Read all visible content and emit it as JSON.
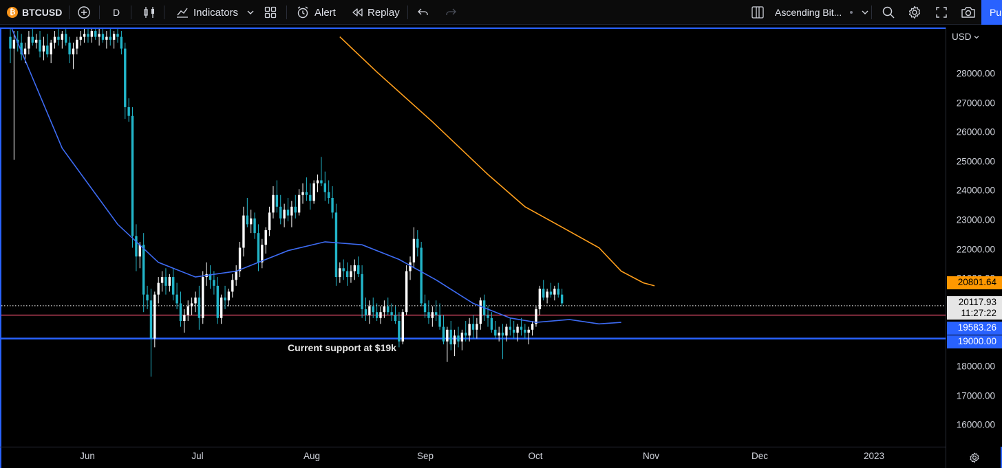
{
  "toolbar": {
    "symbol": "BTCUSD",
    "interval": "D",
    "indicators_label": "Indicators",
    "alert_label": "Alert",
    "replay_label": "Replay",
    "layout_name": "Ascending Bit...",
    "publish_label": "Pu"
  },
  "chart": {
    "currency": "USD",
    "annotation": "Current support at $19k",
    "price_ticks": [
      "28000.00",
      "27000.00",
      "26000.00",
      "25000.00",
      "24000.00",
      "23000.00",
      "22000.00",
      "21000.00",
      "18000.00",
      "17000.00",
      "16000.00"
    ],
    "price_min": 15000,
    "price_max": 29300,
    "month_labels": [
      "Jun",
      "Jul",
      "Aug",
      "Sep",
      "Oct",
      "Nov",
      "Dec",
      "2023"
    ],
    "labels": {
      "ma_orange": {
        "value": "20801.64",
        "color": "#ff9800"
      },
      "last_price": {
        "value": "20117.93",
        "countdown": "11:27:22"
      },
      "ma_blue": {
        "value": "19583.26",
        "color": "#2962ff"
      },
      "support": {
        "value": "19000.00",
        "color": "#2962ff"
      }
    },
    "colors": {
      "up": "#ffffff",
      "down": "#22b5c9",
      "ma_fast": "#3d6bf2",
      "ma_slow": "#ff9f1c",
      "support": "#2962ff",
      "resistance": "#f0506e"
    }
  },
  "chart_data": {
    "type": "line",
    "title": "",
    "levels": {
      "support": 19000,
      "resistance": 19800,
      "last": 20117.93
    },
    "ma_fast_points": [
      [
        1,
        29700
      ],
      [
        15,
        25500
      ],
      [
        30,
        22900
      ],
      [
        41,
        21600
      ],
      [
        51,
        21100
      ],
      [
        62,
        21300
      ],
      [
        76,
        22000
      ],
      [
        86,
        22300
      ],
      [
        96,
        22200
      ],
      [
        106,
        21700
      ],
      [
        116,
        21000
      ],
      [
        126,
        20200
      ],
      [
        136,
        19700
      ],
      [
        143,
        19550
      ],
      [
        152,
        19650
      ],
      [
        160,
        19500
      ],
      [
        166,
        19550
      ]
    ],
    "ma_slow_points": [
      [
        90,
        29300
      ],
      [
        100,
        28100
      ],
      [
        115,
        26400
      ],
      [
        130,
        24600
      ],
      [
        140,
        23500
      ],
      [
        150,
        22800
      ],
      [
        160,
        22100
      ],
      [
        166,
        21300
      ],
      [
        172,
        20900
      ],
      [
        175,
        20800
      ]
    ],
    "candles": [
      [
        1,
        29300,
        29600,
        28400,
        28900
      ],
      [
        2,
        28900,
        29500,
        25100,
        29200
      ],
      [
        3,
        29200,
        29500,
        28800,
        29100
      ],
      [
        4,
        29100,
        29400,
        28500,
        28700
      ],
      [
        5,
        28700,
        29100,
        28400,
        28900
      ],
      [
        6,
        28900,
        29500,
        28700,
        29300
      ],
      [
        7,
        29300,
        29700,
        29000,
        29100
      ],
      [
        8,
        29100,
        29400,
        28900,
        29200
      ],
      [
        9,
        29200,
        29500,
        28600,
        28800
      ],
      [
        10,
        28800,
        29300,
        28500,
        29000
      ],
      [
        11,
        29000,
        29400,
        28600,
        28700
      ],
      [
        12,
        28700,
        29200,
        28400,
        29100
      ],
      [
        13,
        29100,
        29500,
        28900,
        29300
      ],
      [
        14,
        29300,
        29600,
        29000,
        29200
      ],
      [
        15,
        29200,
        29500,
        28900,
        29400
      ],
      [
        16,
        29400,
        29700,
        29000,
        29100
      ],
      [
        17,
        29100,
        29300,
        28400,
        28700
      ],
      [
        18,
        28700,
        29100,
        28200,
        28900
      ],
      [
        19,
        28900,
        29300,
        28700,
        29200
      ],
      [
        20,
        29200,
        29500,
        29000,
        29300
      ],
      [
        21,
        29300,
        29600,
        29100,
        29400
      ],
      [
        22,
        29400,
        29700,
        29100,
        29300
      ],
      [
        23,
        29300,
        29600,
        29100,
        29500
      ],
      [
        24,
        29500,
        29800,
        29200,
        29300
      ],
      [
        25,
        29300,
        29600,
        29000,
        29400
      ],
      [
        26,
        29400,
        29700,
        29100,
        29200
      ],
      [
        27,
        29200,
        29500,
        28900,
        29300
      ],
      [
        28,
        29300,
        29600,
        29000,
        29200
      ],
      [
        29,
        29200,
        29500,
        28900,
        29400
      ],
      [
        30,
        29400,
        29700,
        29100,
        29300
      ],
      [
        31,
        29300,
        29500,
        28700,
        28900
      ],
      [
        32,
        28900,
        29100,
        26500,
        26900
      ],
      [
        33,
        26900,
        27200,
        26400,
        26600
      ],
      [
        34,
        26600,
        26900,
        22100,
        22500
      ],
      [
        35,
        22500,
        22900,
        21300,
        21800
      ],
      [
        36,
        21800,
        22300,
        21400,
        22200
      ],
      [
        37,
        22200,
        22600,
        19900,
        20500
      ],
      [
        38,
        20500,
        20800,
        20000,
        20300
      ],
      [
        39,
        20300,
        20700,
        17700,
        19000
      ],
      [
        40,
        19000,
        20600,
        18700,
        20500
      ],
      [
        41,
        20500,
        21100,
        20200,
        20900
      ],
      [
        42,
        20900,
        21300,
        20600,
        21100
      ],
      [
        43,
        21100,
        21400,
        20500,
        20800
      ],
      [
        44,
        20800,
        21200,
        20600,
        21100
      ],
      [
        45,
        21100,
        21400,
        20300,
        20500
      ],
      [
        46,
        20500,
        20900,
        20000,
        20200
      ],
      [
        47,
        20200,
        20600,
        19400,
        19600
      ],
      [
        48,
        19600,
        20000,
        19200,
        19800
      ],
      [
        49,
        19800,
        20300,
        19600,
        20100
      ],
      [
        50,
        20100,
        20400,
        19800,
        20200
      ],
      [
        51,
        20200,
        20600,
        19900,
        20400
      ],
      [
        52,
        20400,
        20800,
        19300,
        19700
      ],
      [
        53,
        19700,
        21300,
        19500,
        21100
      ],
      [
        54,
        21100,
        21600,
        20800,
        21200
      ],
      [
        55,
        21200,
        21500,
        20700,
        21000
      ],
      [
        56,
        21000,
        21300,
        20500,
        20800
      ],
      [
        57,
        20800,
        21100,
        19500,
        19700
      ],
      [
        58,
        19700,
        20500,
        19500,
        20400
      ],
      [
        59,
        20400,
        20800,
        20000,
        20300
      ],
      [
        60,
        20300,
        20700,
        20100,
        20600
      ],
      [
        61,
        20600,
        21200,
        20400,
        21000
      ],
      [
        62,
        21000,
        21500,
        20800,
        21300
      ],
      [
        63,
        21300,
        22300,
        21100,
        22100
      ],
      [
        64,
        22100,
        23500,
        21800,
        23200
      ],
      [
        65,
        23200,
        23800,
        22800,
        22900
      ],
      [
        66,
        22900,
        23400,
        22600,
        23100
      ],
      [
        67,
        23100,
        23300,
        22400,
        22600
      ],
      [
        68,
        22600,
        22900,
        21300,
        21600
      ],
      [
        69,
        21600,
        22400,
        21400,
        22200
      ],
      [
        70,
        22200,
        22800,
        21900,
        22700
      ],
      [
        71,
        22700,
        23500,
        22500,
        23300
      ],
      [
        72,
        23300,
        24200,
        23100,
        23900
      ],
      [
        73,
        23900,
        24400,
        23300,
        23500
      ],
      [
        74,
        23500,
        23900,
        22900,
        23100
      ],
      [
        75,
        23100,
        23600,
        22800,
        23400
      ],
      [
        76,
        23400,
        23800,
        23000,
        23200
      ],
      [
        77,
        23200,
        23700,
        22800,
        23500
      ],
      [
        78,
        23500,
        23900,
        23100,
        23300
      ],
      [
        79,
        23300,
        24100,
        23200,
        23900
      ],
      [
        80,
        23900,
        24300,
        23600,
        24000
      ],
      [
        81,
        24000,
        24500,
        23700,
        23900
      ],
      [
        82,
        23900,
        24300,
        23400,
        23700
      ],
      [
        83,
        23700,
        24400,
        23600,
        24300
      ],
      [
        84,
        24300,
        24600,
        24000,
        24400
      ],
      [
        85,
        24400,
        25200,
        24200,
        24300
      ],
      [
        86,
        24300,
        24700,
        23700,
        24000
      ],
      [
        87,
        24000,
        24400,
        23600,
        23800
      ],
      [
        88,
        23800,
        24200,
        23100,
        23300
      ],
      [
        89,
        23300,
        23600,
        20800,
        21100
      ],
      [
        90,
        21100,
        21600,
        20900,
        21400
      ],
      [
        91,
        21400,
        21700,
        21000,
        21300
      ],
      [
        92,
        21300,
        21600,
        20800,
        21100
      ],
      [
        93,
        21100,
        21500,
        20900,
        21300
      ],
      [
        94,
        21300,
        21700,
        21000,
        21500
      ],
      [
        95,
        21500,
        21800,
        21100,
        21200
      ],
      [
        96,
        21200,
        21500,
        19700,
        20000
      ],
      [
        97,
        20000,
        20400,
        19600,
        19800
      ],
      [
        98,
        19800,
        20300,
        19500,
        20100
      ],
      [
        99,
        20100,
        20400,
        19700,
        19900
      ],
      [
        100,
        19900,
        20200,
        19600,
        19700
      ],
      [
        101,
        19700,
        20100,
        19500,
        19900
      ],
      [
        102,
        19900,
        20300,
        19700,
        20100
      ],
      [
        103,
        20100,
        20400,
        19800,
        19900
      ],
      [
        104,
        19900,
        20200,
        19600,
        19800
      ],
      [
        105,
        19800,
        20100,
        19500,
        19600
      ],
      [
        106,
        19600,
        19900,
        18700,
        18900
      ],
      [
        107,
        18900,
        20000,
        18800,
        19900
      ],
      [
        108,
        19900,
        21500,
        19800,
        21300
      ],
      [
        109,
        21300,
        21800,
        21000,
        21600
      ],
      [
        110,
        21600,
        22800,
        21400,
        22400
      ],
      [
        111,
        22400,
        22700,
        21800,
        22100
      ],
      [
        112,
        22100,
        22300,
        20100,
        20200
      ],
      [
        113,
        20200,
        20500,
        19700,
        19900
      ],
      [
        114,
        19900,
        20300,
        19500,
        19700
      ],
      [
        115,
        19700,
        20100,
        19400,
        19900
      ],
      [
        116,
        19900,
        20300,
        19600,
        19800
      ],
      [
        117,
        19800,
        20200,
        19300,
        19400
      ],
      [
        118,
        19400,
        19800,
        18800,
        18900
      ],
      [
        119,
        18900,
        19400,
        18200,
        19300
      ],
      [
        120,
        19300,
        19600,
        18600,
        18800
      ],
      [
        121,
        18800,
        19300,
        18400,
        19100
      ],
      [
        122,
        19100,
        19400,
        18700,
        18900
      ],
      [
        123,
        18900,
        19300,
        18600,
        19200
      ],
      [
        124,
        19200,
        19600,
        18900,
        19100
      ],
      [
        125,
        19100,
        19700,
        18900,
        19500
      ],
      [
        126,
        19500,
        19800,
        19000,
        19300
      ],
      [
        127,
        19300,
        19700,
        19000,
        19500
      ],
      [
        128,
        19500,
        20400,
        19300,
        20300
      ],
      [
        129,
        20300,
        20500,
        19600,
        19800
      ],
      [
        130,
        19800,
        20100,
        19400,
        19700
      ],
      [
        131,
        19700,
        19900,
        19200,
        19300
      ],
      [
        132,
        19300,
        19600,
        19000,
        19100
      ],
      [
        133,
        19100,
        19400,
        18900,
        19200
      ],
      [
        134,
        19200,
        19500,
        18300,
        19100
      ],
      [
        135,
        19100,
        19500,
        18900,
        19400
      ],
      [
        136,
        19400,
        19700,
        19100,
        19300
      ],
      [
        137,
        19300,
        19600,
        19000,
        19200
      ],
      [
        138,
        19200,
        19500,
        18900,
        19400
      ],
      [
        139,
        19400,
        19700,
        19100,
        19300
      ],
      [
        140,
        19300,
        19500,
        19000,
        19200
      ],
      [
        141,
        19200,
        19400,
        18800,
        19300
      ],
      [
        142,
        19300,
        19600,
        19100,
        19500
      ],
      [
        143,
        19500,
        20100,
        19400,
        20000
      ],
      [
        144,
        20000,
        20800,
        19800,
        20700
      ],
      [
        145,
        20700,
        21000,
        20300,
        20400
      ],
      [
        146,
        20400,
        20700,
        20200,
        20600
      ],
      [
        147,
        20600,
        20900,
        20400,
        20500
      ],
      [
        148,
        20500,
        20800,
        20300,
        20700
      ],
      [
        149,
        20700,
        20900,
        20400,
        20500
      ],
      [
        150,
        20500,
        20700,
        20100,
        20200
      ]
    ]
  }
}
